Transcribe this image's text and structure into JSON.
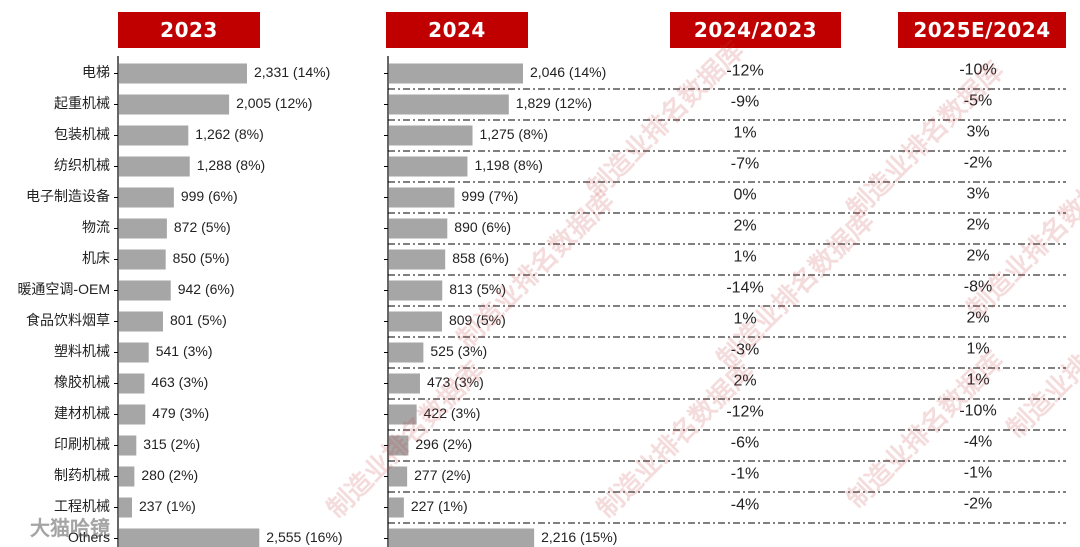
{
  "headers": [
    "2023",
    "2024",
    "2024/2023",
    "2025E/2024"
  ],
  "chart_data": {
    "type": "bar",
    "categories": [
      "电梯",
      "起重机械",
      "包装机械",
      "纺织机械",
      "电子制造设备",
      "物流",
      "机床",
      "暖通空调-OEM",
      "食品饮料烟草",
      "塑料机械",
      "橡胶机械",
      "建材机械",
      "印刷机械",
      "制药机械",
      "工程机械",
      "Others"
    ],
    "series": [
      {
        "name": "2023",
        "values": [
          2331,
          2005,
          1262,
          1288,
          999,
          872,
          850,
          942,
          801,
          541,
          463,
          479,
          315,
          280,
          237,
          2555
        ],
        "labels": [
          "2,331 (14%)",
          "2,005 (12%)",
          "1,262 (8%)",
          "1,288 (8%)",
          "999 (6%)",
          "872 (5%)",
          "850 (5%)",
          "942 (6%)",
          "801 (5%)",
          "541 (3%)",
          "463 (3%)",
          "479 (3%)",
          "315 (2%)",
          "280 (2%)",
          "237 (1%)",
          "2,555 (16%)"
        ]
      },
      {
        "name": "2024",
        "values": [
          2046,
          1829,
          1275,
          1198,
          999,
          890,
          858,
          813,
          809,
          525,
          473,
          422,
          296,
          277,
          227,
          2216
        ],
        "labels": [
          "2,046 (14%)",
          "1,829 (12%)",
          "1,275 (8%)",
          "1,198 (8%)",
          "999 (7%)",
          "890 (6%)",
          "858 (6%)",
          "813 (5%)",
          "809 (5%)",
          "525 (3%)",
          "473 (3%)",
          "422 (3%)",
          "296 (2%)",
          "277 (2%)",
          "227 (1%)",
          "2,216 (15%)"
        ]
      }
    ],
    "growth_2024_2023": [
      "-12%",
      "-9%",
      "1%",
      "-7%",
      "0%",
      "2%",
      "1%",
      "-14%",
      "1%",
      "-3%",
      "2%",
      "-12%",
      "-6%",
      "-1%",
      "-4%",
      ""
    ],
    "growth_2025e_2024": [
      "-10%",
      "-5%",
      "3%",
      "-2%",
      "3%",
      "2%",
      "2%",
      "-8%",
      "2%",
      "1%",
      "1%",
      "-10%",
      "-4%",
      "-1%",
      "-2%",
      ""
    ],
    "bar_color": "#a6a6a6",
    "header_color": "#c00000"
  },
  "watermark": {
    "text": "制造业排名数据库",
    "bottom_text": "大猫哈镜"
  }
}
